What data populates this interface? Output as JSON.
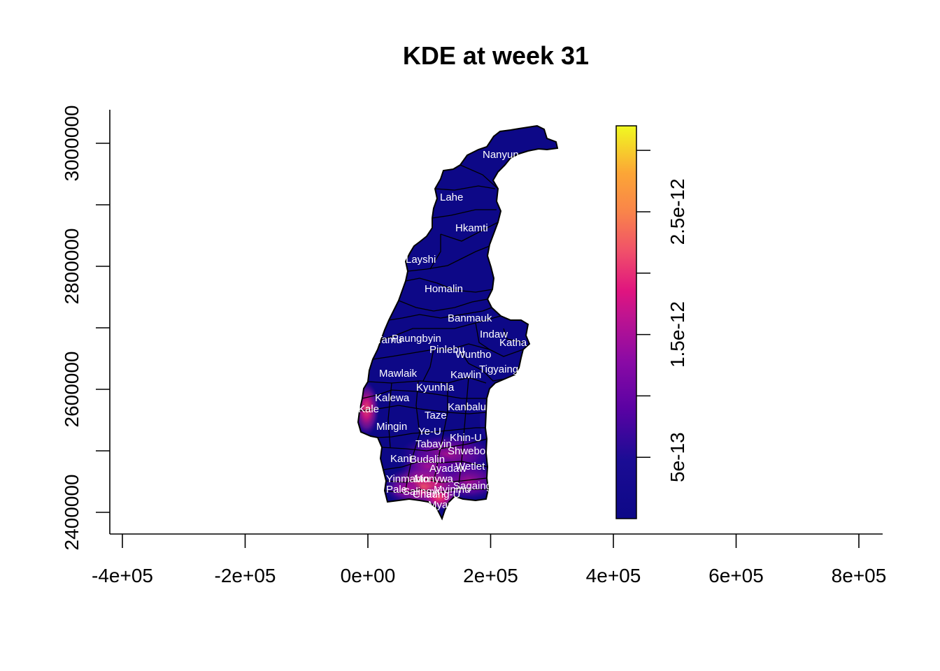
{
  "title": "KDE at week 31",
  "x_axis": {
    "ticks": [
      "-4e+05",
      "-2e+05",
      "0e+00",
      "2e+05",
      "4e+05",
      "6e+05",
      "8e+05"
    ]
  },
  "y_axis": {
    "ticks": [
      "2400000",
      "2600000",
      "2800000",
      "3000000"
    ]
  },
  "legend": {
    "ticks": [
      "5e-13",
      "1.5e-12",
      "2.5e-12"
    ],
    "colors": [
      "#0d0887",
      "#2a0f9a",
      "#6a00a8",
      "#9c179e",
      "#c03a83",
      "#e0147f",
      "#f0506a",
      "#f9844a",
      "#fca636",
      "#f0f921"
    ]
  },
  "regions": [
    "Nanyun",
    "Lahe",
    "Hkamti",
    "Layshi",
    "Homalin",
    "Banmauk",
    "Indaw",
    "Katha",
    "Tamu",
    "Paungbyin",
    "Pinlebu",
    "Wuntho",
    "Tigyaing",
    "Mawlaik",
    "Kawlin",
    "Kyunhla",
    "Kalewa",
    "Kale",
    "Kanbalu",
    "Taze",
    "Mingin",
    "Ye-U",
    "Khin-U",
    "Tabayin",
    "Shwebo",
    "Kani",
    "Budalin",
    "Ayadaw",
    "Wetlet",
    "Yinmabin",
    "Monywa",
    "Sagaing",
    "Pale",
    "Salingyi",
    "Myinmu",
    "Chaung-U",
    "Myaung"
  ],
  "chart_data": {
    "type": "heatmap",
    "title": "KDE at week 31",
    "xlabel": "",
    "ylabel": "",
    "x_ticks": [
      -400000,
      -200000,
      0,
      200000,
      400000,
      600000,
      800000
    ],
    "y_ticks": [
      2400000,
      2600000,
      2800000,
      3000000
    ],
    "xlim": [
      -420000,
      840000
    ],
    "ylim": [
      2365000,
      3055000
    ],
    "value_range": [
      0,
      3.2e-12
    ],
    "legend_ticks": [
      5e-13,
      1.5e-12,
      2.5e-12
    ],
    "legend_placement": "right",
    "grid": false,
    "hotspots": [
      {
        "region": "Kale",
        "x": -4000,
        "y": 2570000,
        "value": 1.5e-12
      },
      {
        "region": "Monywa",
        "x": 95000,
        "y": 2444000,
        "value": 2.1e-12
      },
      {
        "region": "Chaung-U",
        "x": 115000,
        "y": 2432000,
        "value": 1.6e-12
      },
      {
        "region": "Salingyi",
        "x": 85000,
        "y": 2431000,
        "value": 1.4e-12
      },
      {
        "region": "Ayadaw",
        "x": 95000,
        "y": 2468000,
        "value": 1e-12
      },
      {
        "region": "Wetlet",
        "x": 160000,
        "y": 2468000,
        "value": 8e-13
      },
      {
        "region": "Khin-U",
        "x": 150000,
        "y": 2510000,
        "value": 7e-13
      },
      {
        "region": "Sagaing",
        "x": 175000,
        "y": 2438000,
        "value": 9e-13
      }
    ]
  }
}
